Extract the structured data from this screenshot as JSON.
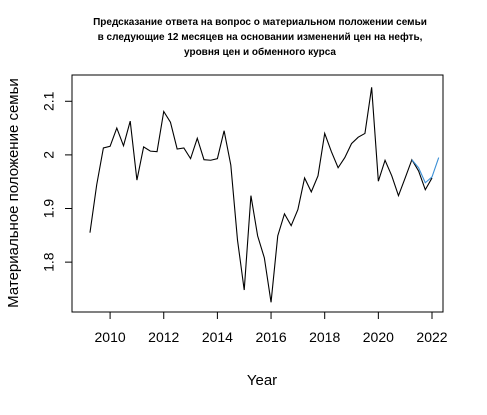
{
  "chart_data": {
    "type": "line",
    "title_lines": [
      "Предсказание ответа на вопрос о материальном положении семьи",
      "в следующие 12 месяцев на основании изменений цен на нефть,",
      "уровня цен и обменного курса"
    ],
    "x_label": "Year",
    "y_label": "Материальное положение семьи",
    "series": [
      {
        "color": "#000000",
        "x": [
          2009.25,
          2009.5,
          2009.75,
          2010,
          2010.25,
          2010.5,
          2010.75,
          2011,
          2011.25,
          2011.5,
          2011.75,
          2012,
          2012.25,
          2012.5,
          2012.75,
          2013,
          2013.25,
          2013.5,
          2013.75,
          2014,
          2014.25,
          2014.5,
          2014.75,
          2015,
          2015.25,
          2015.5,
          2015.75,
          2016,
          2016.25,
          2016.5,
          2016.75,
          2017,
          2017.25,
          2017.5,
          2017.75,
          2018,
          2018.25,
          2018.5,
          2018.75,
          2019,
          2019.25,
          2019.5,
          2019.75,
          2020,
          2020.25,
          2020.5,
          2020.75,
          2021,
          2021.25,
          2021.5,
          2021.75,
          2022
        ],
        "values": [
          1.855,
          1.944,
          2.013,
          2.016,
          2.05,
          2.017,
          2.063,
          1.953,
          2.015,
          2.007,
          2.006,
          2.081,
          2.061,
          2.011,
          2.013,
          1.993,
          2.031,
          1.991,
          1.99,
          1.993,
          2.045,
          1.981,
          1.841,
          1.748,
          1.924,
          1.849,
          1.808,
          1.725,
          1.849,
          1.89,
          1.868,
          1.898,
          1.957,
          1.931,
          1.961,
          2.04,
          2.006,
          1.976,
          1.995,
          2.021,
          2.033,
          2.04,
          2.126,
          1.951,
          1.99,
          1.961,
          1.924,
          1.957,
          1.991,
          1.97,
          1.935,
          1.957
        ]
      },
      {
        "color": "#3a8fd6",
        "x": [
          2021.25,
          2021.5,
          2021.75,
          2022,
          2022.25
        ],
        "values": [
          1.991,
          1.976,
          1.948,
          1.959,
          1.995
        ]
      }
    ],
    "xlim": [
      2008.58,
      2022.41
    ],
    "ylim": [
      1.707,
      2.149
    ],
    "xticks": [
      2010,
      2012,
      2014,
      2016,
      2018,
      2020,
      2022
    ],
    "yticks": [
      1.8,
      1.9,
      2.0,
      2.1
    ]
  }
}
